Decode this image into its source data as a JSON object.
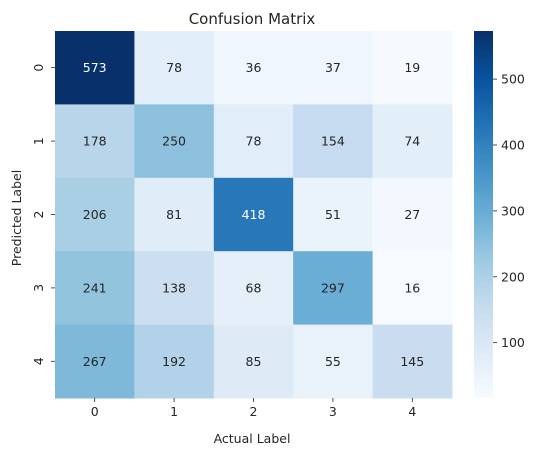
{
  "chart_data": {
    "type": "heatmap",
    "title": "Confusion Matrix",
    "xlabel": "Actual Label",
    "ylabel": "Predicted Label",
    "x_categories": [
      "0",
      "1",
      "2",
      "3",
      "4"
    ],
    "y_categories": [
      "0",
      "1",
      "2",
      "3",
      "4"
    ],
    "values": [
      [
        573,
        78,
        36,
        37,
        19
      ],
      [
        178,
        250,
        78,
        154,
        74
      ],
      [
        206,
        81,
        418,
        51,
        27
      ],
      [
        241,
        138,
        68,
        297,
        16
      ],
      [
        267,
        192,
        85,
        55,
        145
      ]
    ],
    "colormap": "Blues",
    "colorbar": {
      "min": 16,
      "max": 573,
      "ticks": [
        100,
        200,
        300,
        400,
        500
      ]
    },
    "annotations": true
  }
}
